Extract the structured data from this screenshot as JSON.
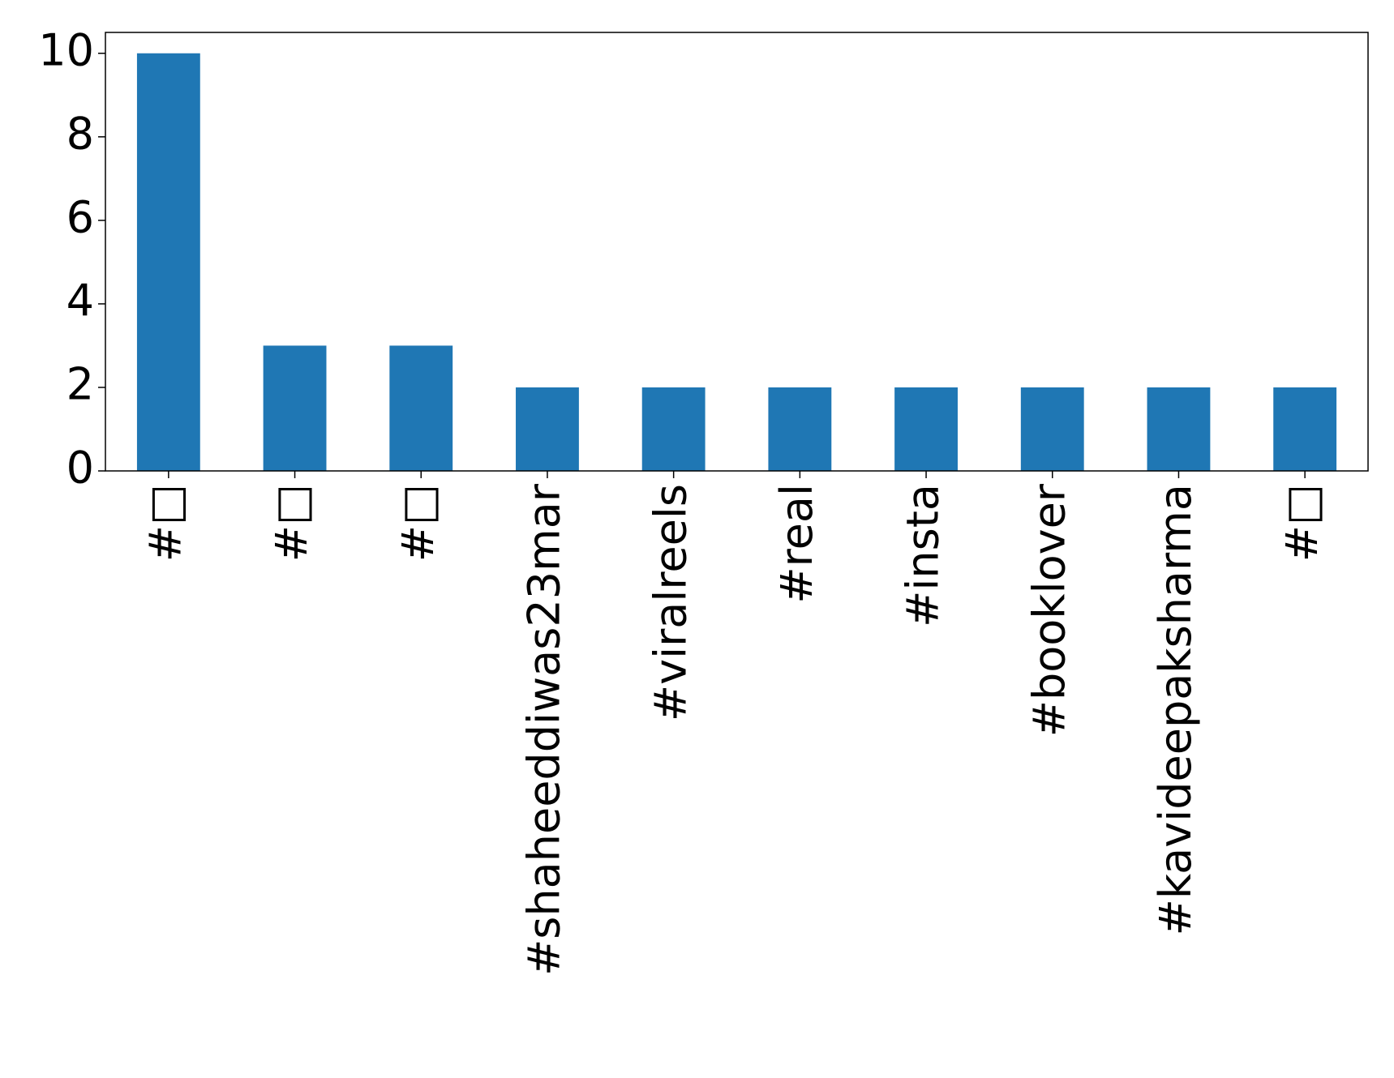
{
  "chart_data": {
    "type": "bar",
    "categories": [
      "#□",
      "#□",
      "#□",
      "#shaheeddiwas23mar",
      "#viralreels",
      "#real",
      "#insta",
      "#booklover",
      "#kavideepaksharma",
      "#□"
    ],
    "values": [
      10,
      3,
      3,
      2,
      2,
      2,
      2,
      2,
      2,
      2
    ],
    "color": "#1f77b4",
    "ylim": [
      0,
      10.5
    ],
    "yticks": [
      0,
      2,
      4,
      6,
      8,
      10
    ],
    "grid": false
  }
}
